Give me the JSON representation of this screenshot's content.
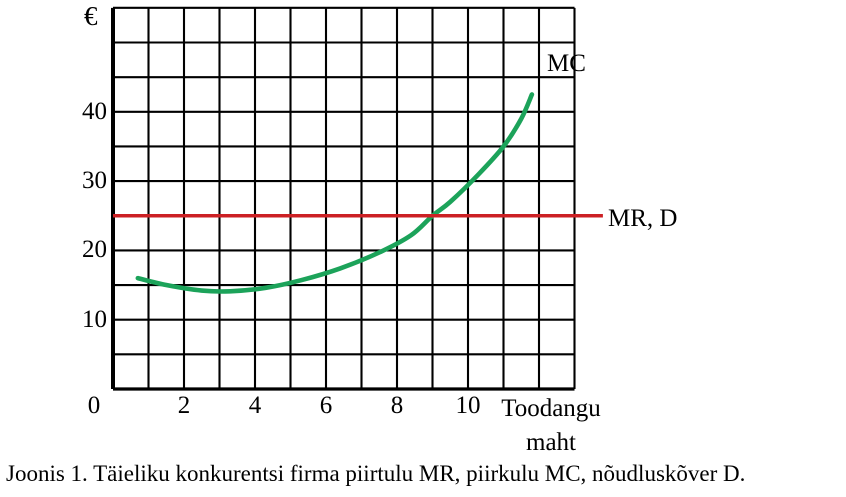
{
  "caption": "Joonis 1. Täieliku konkurentsi firma piirtulu MR, piirkulu MC, nõudluskõver D.",
  "labels": {
    "y_axis_unit": "€",
    "mc_curve_label": "MC",
    "mr_d_line_label": "MR, D",
    "x_axis_title_line1": "Toodangu",
    "x_axis_title_line2": "maht"
  },
  "colors": {
    "mc_curve": "#1ca35a",
    "mr_d_line": "#cc2024",
    "grid": "#000000",
    "text": "#000000",
    "background": "#ffffff"
  },
  "chart_data": {
    "type": "line",
    "title": "",
    "xlabel": "Toodangu maht",
    "ylabel": "€",
    "xlim": [
      0,
      13
    ],
    "ylim": [
      0,
      55
    ],
    "x_ticks": [
      0,
      2,
      4,
      6,
      8,
      10
    ],
    "y_ticks": [
      10,
      20,
      30,
      40
    ],
    "grid": true,
    "grid_step": {
      "x": 1,
      "y": 5
    },
    "legend_position": "inline-annotations",
    "series": [
      {
        "name": "MC",
        "style": "smooth-curve",
        "color": "#1ca35a",
        "points": [
          [
            0.7,
            16
          ],
          [
            1.5,
            15
          ],
          [
            2.5,
            14.2
          ],
          [
            3.3,
            14.1
          ],
          [
            4.3,
            14.6
          ],
          [
            5.3,
            15.7
          ],
          [
            6.4,
            17.4
          ],
          [
            7.5,
            19.7
          ],
          [
            8.4,
            22.2
          ],
          [
            9.0,
            25.0
          ],
          [
            9.5,
            27.0
          ],
          [
            10.3,
            31.0
          ],
          [
            11.0,
            35.0
          ],
          [
            11.5,
            39.0
          ],
          [
            11.8,
            42.5
          ]
        ]
      },
      {
        "name": "MR, D",
        "style": "straight-line",
        "color": "#cc2024",
        "points": [
          [
            0,
            25
          ],
          [
            13.8,
            25
          ]
        ]
      }
    ],
    "annotations": [
      {
        "text": "MC",
        "attached_to": "MC"
      },
      {
        "text": "MR, D",
        "attached_to": "MR, D"
      }
    ]
  }
}
